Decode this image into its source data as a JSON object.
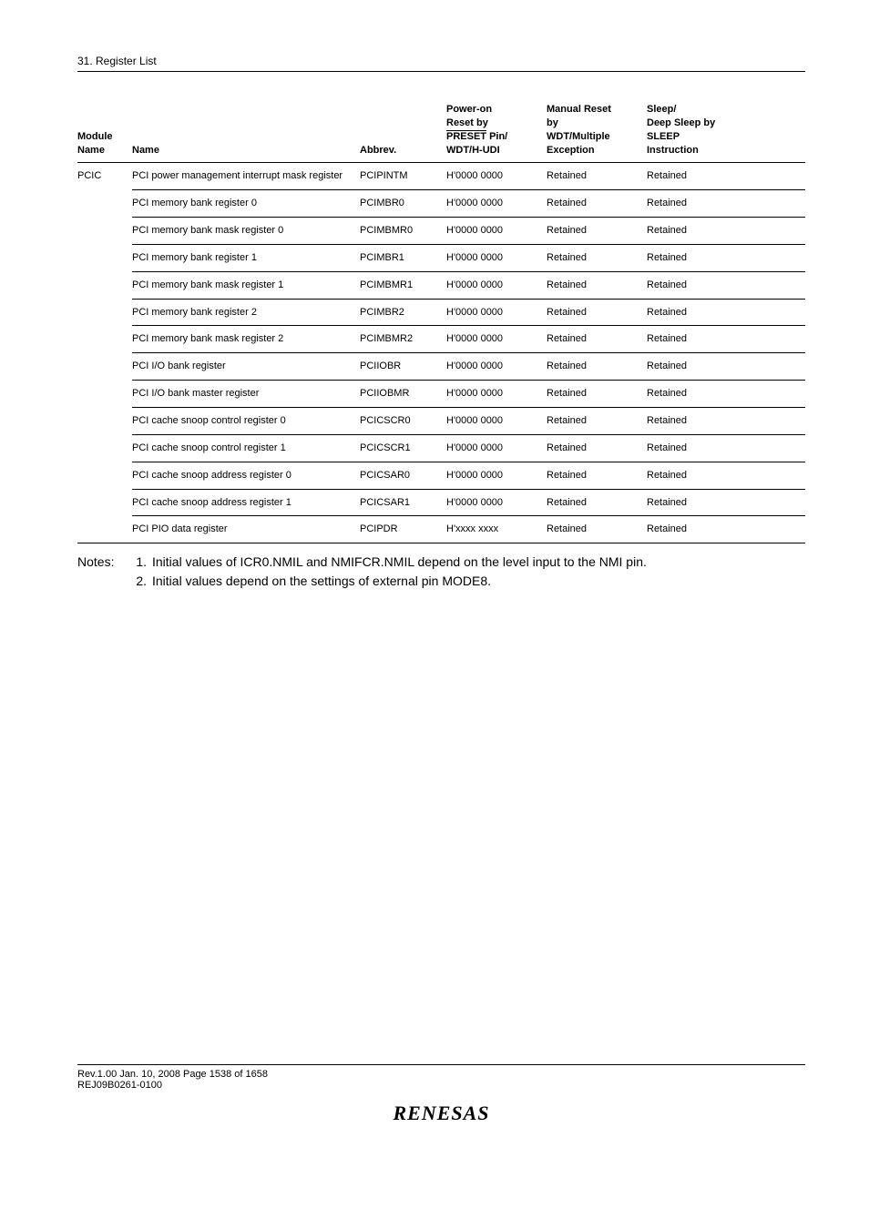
{
  "header": {
    "section": "31.   Register List"
  },
  "table": {
    "headers": {
      "module": "Module Name",
      "name": "Name",
      "abbrev": "Abbrev.",
      "power_l1": "Power-on",
      "power_l2": "Reset by",
      "power_l3_a": "PRESET",
      "power_l3_b": " Pin/",
      "power_l4": "WDT/H-UDI",
      "manual_l1": "Manual Reset",
      "manual_l2": "by",
      "manual_l3": "WDT/Multiple",
      "manual_l4": "Exception",
      "sleep_l1": "Sleep/",
      "sleep_l2": "Deep Sleep by",
      "sleep_l3": "SLEEP",
      "sleep_l4": "Instruction"
    },
    "module": "PCIC",
    "rows": [
      {
        "name": "PCI power management interrupt mask register",
        "abbrev": "PCIPINTM",
        "power": "H'0000 0000",
        "manual": "Retained",
        "sleep": "Retained"
      },
      {
        "name": "PCI memory bank register 0",
        "abbrev": "PCIMBR0",
        "power": "H'0000 0000",
        "manual": "Retained",
        "sleep": "Retained"
      },
      {
        "name": "PCI memory bank mask register 0",
        "abbrev": "PCIMBMR0",
        "power": "H'0000 0000",
        "manual": "Retained",
        "sleep": "Retained"
      },
      {
        "name": "PCI memory bank register 1",
        "abbrev": "PCIMBR1",
        "power": "H'0000 0000",
        "manual": "Retained",
        "sleep": "Retained"
      },
      {
        "name": "PCI memory bank mask register 1",
        "abbrev": "PCIMBMR1",
        "power": "H'0000 0000",
        "manual": "Retained",
        "sleep": "Retained"
      },
      {
        "name": "PCI memory bank register 2",
        "abbrev": "PCIMBR2",
        "power": "H'0000 0000",
        "manual": "Retained",
        "sleep": "Retained"
      },
      {
        "name": "PCI memory bank mask register 2",
        "abbrev": "PCIMBMR2",
        "power": "H'0000 0000",
        "manual": "Retained",
        "sleep": "Retained"
      },
      {
        "name": "PCI I/O bank register",
        "abbrev": "PCIIOBR",
        "power": "H'0000 0000",
        "manual": "Retained",
        "sleep": "Retained"
      },
      {
        "name": "PCI I/O bank master register",
        "abbrev": "PCIIOBMR",
        "power": "H'0000 0000",
        "manual": "Retained",
        "sleep": "Retained"
      },
      {
        "name": "PCI cache snoop control register 0",
        "abbrev": "PCICSCR0",
        "power": "H'0000 0000",
        "manual": "Retained",
        "sleep": "Retained"
      },
      {
        "name": "PCI cache snoop control register 1",
        "abbrev": "PCICSCR1",
        "power": "H'0000 0000",
        "manual": "Retained",
        "sleep": "Retained"
      },
      {
        "name": "PCI cache snoop address register 0",
        "abbrev": "PCICSAR0",
        "power": "H'0000 0000",
        "manual": "Retained",
        "sleep": "Retained"
      },
      {
        "name": "PCI cache snoop address register 1",
        "abbrev": "PCICSAR1",
        "power": "H'0000 0000",
        "manual": "Retained",
        "sleep": "Retained"
      },
      {
        "name": "PCI PIO data register",
        "abbrev": "PCIPDR",
        "power": "H'xxxx xxxx",
        "manual": "Retained",
        "sleep": "Retained"
      }
    ]
  },
  "notes": {
    "label": "Notes:",
    "items": [
      {
        "num": "1.",
        "text": "Initial values of ICR0.NMIL and NMIFCR.NMIL depend on the level input to the NMI pin."
      },
      {
        "num": "2.",
        "text": "Initial values depend on the settings of external pin MODE8."
      }
    ]
  },
  "footer": {
    "line1": "Rev.1.00  Jan. 10, 2008  Page 1538 of 1658",
    "line2": "REJ09B0261-0100",
    "logo": "RENESAS"
  }
}
